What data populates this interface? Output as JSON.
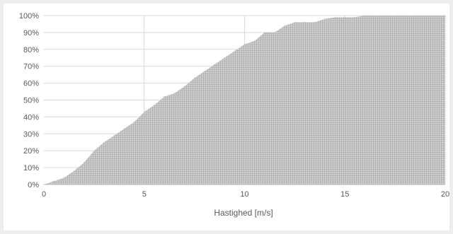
{
  "chart_data": {
    "type": "area",
    "title": "",
    "xlabel": "Hastighed [m/s]",
    "ylabel": "",
    "xlim": [
      0,
      20
    ],
    "ylim": [
      0,
      1
    ],
    "grid": true,
    "legend": "none",
    "x_ticks": [
      {
        "value": 0,
        "label": "0"
      },
      {
        "value": 5,
        "label": "5"
      },
      {
        "value": 10,
        "label": "10"
      },
      {
        "value": 15,
        "label": "15"
      },
      {
        "value": 20,
        "label": "20"
      }
    ],
    "y_ticks": [
      {
        "value": 0.0,
        "label": "0%"
      },
      {
        "value": 0.1,
        "label": "10%"
      },
      {
        "value": 0.2,
        "label": "20%"
      },
      {
        "value": 0.3,
        "label": "30%"
      },
      {
        "value": 0.4,
        "label": "40%"
      },
      {
        "value": 0.5,
        "label": "50%"
      },
      {
        "value": 0.6,
        "label": "60%"
      },
      {
        "value": 0.7,
        "label": "70%"
      },
      {
        "value": 0.8,
        "label": "80%"
      },
      {
        "value": 0.9,
        "label": "90%"
      },
      {
        "value": 1.0,
        "label": "100%"
      }
    ],
    "series": [
      {
        "color": "#bfbfbf",
        "x": [
          0,
          0.5,
          1.0,
          1.5,
          2.0,
          2.5,
          3.0,
          3.5,
          4.0,
          4.5,
          5.0,
          5.5,
          6.0,
          6.5,
          7.0,
          7.5,
          8.0,
          8.5,
          9.0,
          9.5,
          10.0,
          10.5,
          11.0,
          11.5,
          12.0,
          12.5,
          13.0,
          13.5,
          14.0,
          14.5,
          15.0,
          15.5,
          16.0,
          17.0,
          18.0,
          19.0,
          20.0
        ],
        "y": [
          0.0,
          0.02,
          0.04,
          0.08,
          0.13,
          0.2,
          0.25,
          0.29,
          0.33,
          0.37,
          0.43,
          0.47,
          0.52,
          0.54,
          0.58,
          0.63,
          0.67,
          0.71,
          0.75,
          0.79,
          0.83,
          0.85,
          0.9,
          0.9,
          0.94,
          0.96,
          0.96,
          0.96,
          0.98,
          0.99,
          0.99,
          0.99,
          1.0,
          1.0,
          1.0,
          1.0,
          1.0
        ]
      }
    ]
  }
}
